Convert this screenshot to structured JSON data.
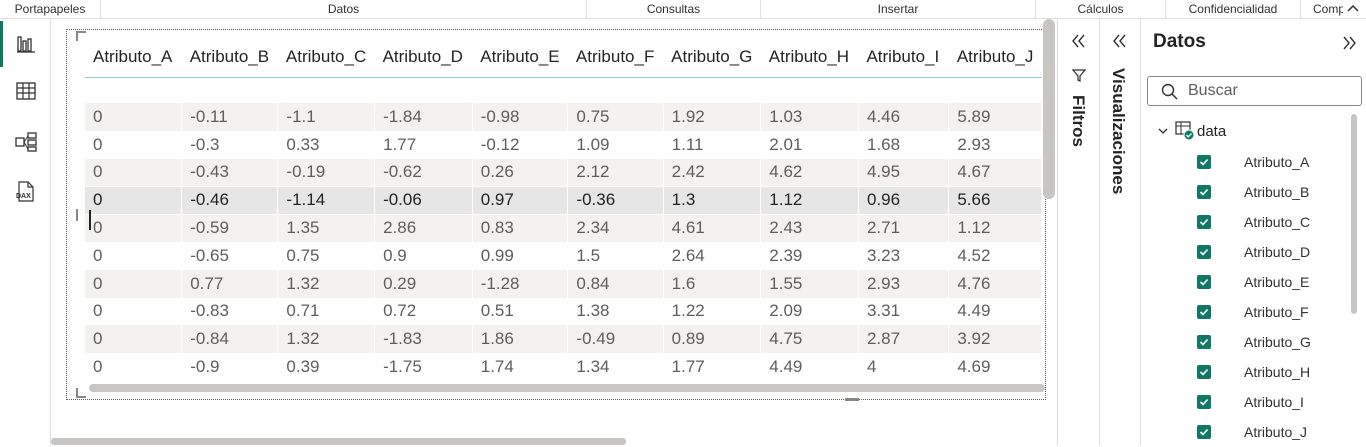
{
  "ribbon": {
    "groups": [
      "Portapapeles",
      "Datos",
      "Consultas",
      "Insertar",
      "Cálculos",
      "Confidencialidad",
      "Comp"
    ]
  },
  "rail": {
    "items": [
      {
        "name": "report-view-icon",
        "active": true
      },
      {
        "name": "table-view-icon",
        "active": false
      },
      {
        "name": "model-view-icon",
        "active": false
      },
      {
        "name": "dax-query-view-icon",
        "active": false
      }
    ],
    "dax_label": "DAX"
  },
  "table": {
    "columns": [
      "Atributo_A",
      "Atributo_B",
      "Atributo_C",
      "Atributo_D",
      "Atributo_E",
      "Atributo_F",
      "Atributo_G",
      "Atributo_H",
      "Atributo_I",
      "Atributo_J"
    ],
    "rows": [
      [
        "0",
        "-0.11",
        "-1.1",
        "-1.84",
        "-0.98",
        "0.75",
        "1.92",
        "1.03",
        "4.46",
        "5.89"
      ],
      [
        "0",
        "-0.3",
        "0.33",
        "1.77",
        "-0.12",
        "1.09",
        "1.11",
        "2.01",
        "1.68",
        "2.93"
      ],
      [
        "0",
        "-0.43",
        "-0.19",
        "-0.62",
        "0.26",
        "2.12",
        "2.42",
        "4.62",
        "4.95",
        "4.67"
      ],
      [
        "0",
        "-0.46",
        "-1.14",
        "-0.06",
        "0.97",
        "-0.36",
        "1.3",
        "1.12",
        "0.96",
        "5.66"
      ],
      [
        "0",
        "-0.59",
        "1.35",
        "2.86",
        "0.83",
        "2.34",
        "4.61",
        "2.43",
        "2.71",
        "1.12"
      ],
      [
        "0",
        "-0.65",
        "0.75",
        "0.9",
        "0.99",
        "1.5",
        "2.64",
        "2.39",
        "3.23",
        "4.52"
      ],
      [
        "0",
        "0.77",
        "1.32",
        "0.29",
        "-1.28",
        "0.84",
        "1.6",
        "1.55",
        "2.93",
        "4.76"
      ],
      [
        "0",
        "-0.83",
        "0.71",
        "0.72",
        "0.51",
        "1.38",
        "1.22",
        "2.09",
        "3.31",
        "4.49"
      ],
      [
        "0",
        "-0.84",
        "1.32",
        "-1.83",
        "1.86",
        "-0.49",
        "0.89",
        "4.75",
        "2.87",
        "3.92"
      ],
      [
        "0",
        "-0.9",
        "0.39",
        "-1.75",
        "1.74",
        "1.34",
        "1.77",
        "4.49",
        "4",
        "4.69"
      ]
    ],
    "selected_row": 3
  },
  "filters": {
    "label": "Filtros"
  },
  "visualizations": {
    "label": "Visualizaciones"
  },
  "data_pane": {
    "title": "Datos",
    "search_placeholder": "Buscar",
    "table_name": "data",
    "fields": [
      "Atributo_A",
      "Atributo_B",
      "Atributo_C",
      "Atributo_D",
      "Atributo_E",
      "Atributo_F",
      "Atributo_G",
      "Atributo_H",
      "Atributo_I",
      "Atributo_J"
    ],
    "checked": [
      true,
      true,
      true,
      true,
      true,
      true,
      true,
      true,
      true,
      true
    ]
  },
  "colors": {
    "accent": "#117865",
    "header_underline": "#8fc9e6",
    "row_alt": "#f3f2f1"
  }
}
